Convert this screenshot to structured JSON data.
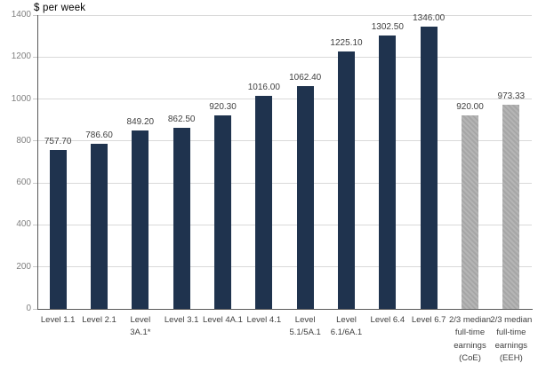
{
  "chart_data": {
    "type": "bar",
    "title": "$ per week",
    "xlabel": "",
    "ylabel": "$ per week",
    "ylim": [
      0,
      1400
    ],
    "ytick_step": 200,
    "yticks": [
      0,
      200,
      400,
      600,
      800,
      1000,
      1200,
      1400
    ],
    "grid": true,
    "legend": "none",
    "categories": [
      "Level 1.1",
      "Level 2.1",
      "Level 3A.1*",
      "Level 3.1",
      "Level 4A.1",
      "Level 4.1",
      "Level 5.1/5A.1",
      "Level 6.1/6A.1",
      "Level 6.4",
      "Level 6.7",
      "2/3 median full-time earnings (CoE)",
      "2/3 median full-time earnings (EEH)"
    ],
    "values": [
      757.7,
      786.6,
      849.2,
      862.5,
      920.3,
      1016.0,
      1062.4,
      1225.1,
      1302.5,
      1346.0,
      920.0,
      973.33
    ],
    "value_labels": [
      "757.70",
      "786.60",
      "849.20",
      "862.50",
      "920.30",
      "1016.00",
      "1062.40",
      "1225.10",
      "1302.50",
      "1346.00",
      "920.00",
      "973.33"
    ],
    "bar_styles": [
      "navy",
      "navy",
      "navy",
      "navy",
      "navy",
      "navy",
      "navy",
      "navy",
      "navy",
      "navy",
      "hatch",
      "hatch"
    ],
    "colors": {
      "navy_bar": "#1f334e",
      "hatch_bar": "#aeaeae",
      "gridline": "#d9d9d9",
      "axis": "#595959",
      "ytick_label": "#7f7f7f",
      "value_label": "#404040",
      "category_label": "#404040"
    }
  }
}
